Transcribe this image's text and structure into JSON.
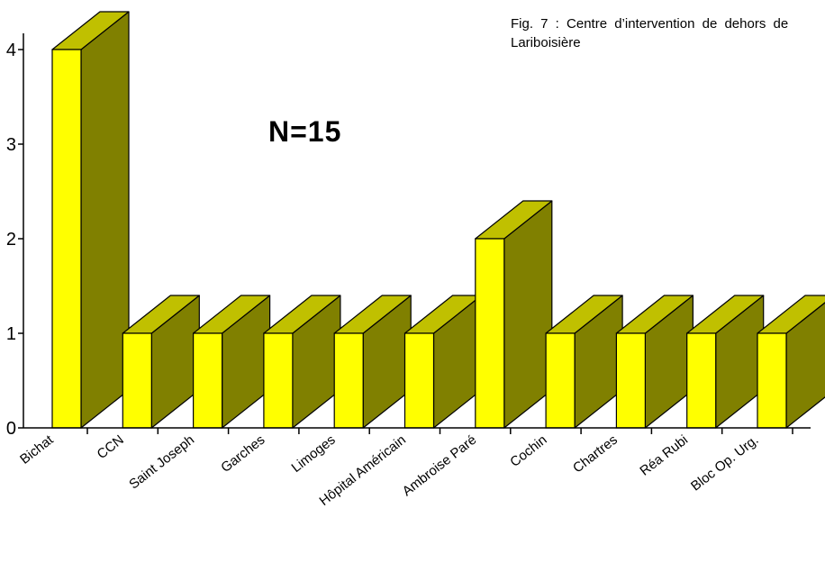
{
  "chart_data": {
    "type": "bar",
    "style": "3d",
    "categories": [
      "Bichat",
      "CCN",
      "Saint Joseph",
      "Garches",
      "Limoges",
      "Hôpital Américain",
      "Ambroise Paré",
      "Cochin",
      "Chartres",
      "Réa Rubi",
      "Bloc Op. Urg."
    ],
    "values": [
      4,
      1,
      1,
      1,
      1,
      1,
      2,
      1,
      1,
      1,
      1
    ],
    "yticks": [
      "0",
      "1",
      "2",
      "3",
      "4"
    ],
    "ylim": [
      0,
      4
    ],
    "grid": false,
    "legend": "none",
    "caption": "Fig. 7 : Centre d’intervention de dehors de Lariboisière",
    "annotation": "N=15",
    "colors": {
      "front": "#FFFF00",
      "side": "#808000",
      "top": "#C0C000",
      "outline": "#000000"
    }
  }
}
